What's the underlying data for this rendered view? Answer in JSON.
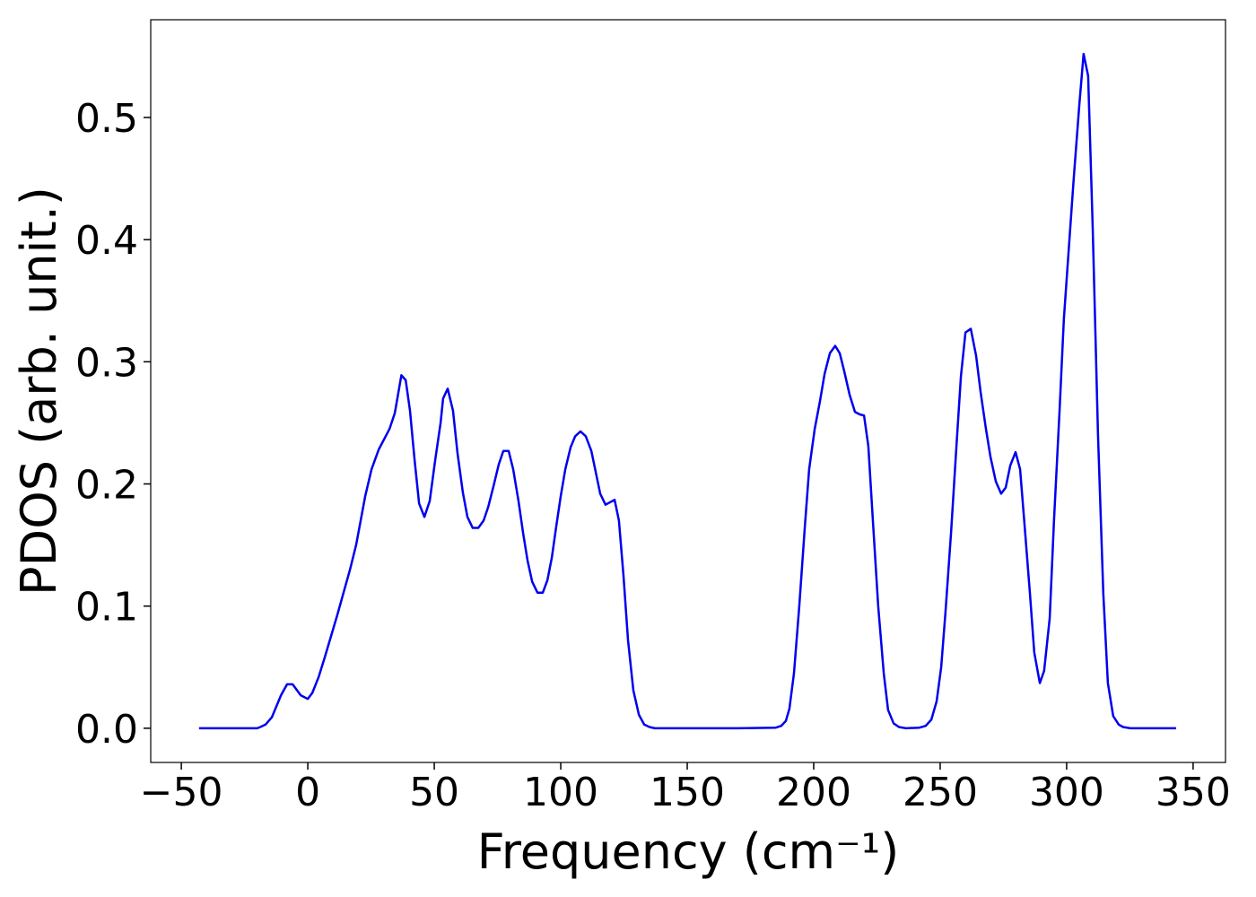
{
  "chart_data": {
    "type": "line",
    "xlabel": "Frequency (cm⁻¹)",
    "ylabel": "PDOS (arb. unit.)",
    "color": "#0000ee",
    "grid": false,
    "x": [
      -43,
      -35,
      -25,
      -20,
      -18.8,
      -16.7,
      -14.2,
      -10.6,
      -8.2,
      -6,
      -2.8,
      0,
      1.8,
      4.3,
      6.7,
      11.7,
      16.7,
      19.1,
      22.7,
      25.2,
      28,
      32.3,
      34.4,
      37,
      38.7,
      40.4,
      42.2,
      44,
      46.1,
      48.2,
      50.4,
      52.5,
      53.5,
      55.3,
      57.4,
      59.2,
      61.3,
      63.1,
      65.2,
      67.4,
      69.5,
      71.3,
      73.4,
      75.5,
      77.3,
      79.4,
      81.2,
      83.3,
      85.1,
      86.9,
      88.7,
      90.8,
      92.9,
      94.7,
      96.5,
      98.2,
      100,
      101.8,
      103.9,
      105.7,
      107.8,
      109.9,
      112.1,
      113.8,
      115.6,
      117.7,
      119.5,
      121.3,
      123,
      124.8,
      126.6,
      128.7,
      130.9,
      133,
      135.1,
      137.2,
      150,
      170,
      185,
      187.2,
      189,
      190.4,
      192.2,
      194.3,
      196.5,
      198.2,
      200.4,
      202.5,
      204.3,
      206.4,
      208.5,
      210.3,
      212.1,
      214.2,
      216.3,
      218.1,
      219.9,
      221.6,
      223.4,
      225.5,
      227.7,
      229.4,
      231.6,
      233.7,
      236.5,
      241.8,
      244.3,
      246.5,
      248.6,
      250.4,
      252.1,
      254.3,
      256.4,
      258.2,
      260,
      262.1,
      264.2,
      266,
      268.1,
      269.9,
      272,
      274.1,
      275.9,
      277.7,
      279.8,
      281.6,
      283.3,
      285.5,
      287.2,
      289.4,
      291.1,
      293.3,
      295,
      297.2,
      298.9,
      301.1,
      302.8,
      305,
      306.7,
      308.5,
      310.3,
      312.4,
      314.5,
      316.3,
      318.4,
      320.6,
      322.3,
      325.2,
      330,
      343.3
    ],
    "values": [
      0,
      0,
      0,
      0,
      0.001,
      0.003,
      0.009,
      0.027,
      0.036,
      0.036,
      0.027,
      0.024,
      0.029,
      0.042,
      0.058,
      0.093,
      0.13,
      0.15,
      0.19,
      0.212,
      0.228,
      0.245,
      0.258,
      0.289,
      0.285,
      0.26,
      0.22,
      0.184,
      0.173,
      0.186,
      0.22,
      0.25,
      0.27,
      0.278,
      0.26,
      0.225,
      0.193,
      0.173,
      0.164,
      0.164,
      0.17,
      0.181,
      0.198,
      0.216,
      0.227,
      0.227,
      0.212,
      0.186,
      0.16,
      0.137,
      0.12,
      0.111,
      0.111,
      0.121,
      0.14,
      0.165,
      0.19,
      0.212,
      0.23,
      0.239,
      0.243,
      0.239,
      0.227,
      0.21,
      0.192,
      0.183,
      0.185,
      0.187,
      0.17,
      0.125,
      0.072,
      0.031,
      0.011,
      0.003,
      0.001,
      0,
      0,
      0,
      0.0005,
      0.002,
      0.006,
      0.016,
      0.045,
      0.1,
      0.165,
      0.212,
      0.245,
      0.268,
      0.29,
      0.307,
      0.313,
      0.307,
      0.292,
      0.273,
      0.259,
      0.257,
      0.256,
      0.231,
      0.17,
      0.1,
      0.045,
      0.015,
      0.004,
      0.001,
      0,
      0.0005,
      0.002,
      0.007,
      0.022,
      0.05,
      0.095,
      0.16,
      0.23,
      0.288,
      0.324,
      0.327,
      0.305,
      0.275,
      0.245,
      0.222,
      0.202,
      0.192,
      0.197,
      0.215,
      0.226,
      0.212,
      0.168,
      0.11,
      0.062,
      0.037,
      0.047,
      0.09,
      0.17,
      0.26,
      0.335,
      0.4,
      0.45,
      0.51,
      0.552,
      0.534,
      0.41,
      0.24,
      0.11,
      0.037,
      0.01,
      0.003,
      0.001,
      0,
      0,
      0
    ],
    "xlim": [
      -62.1,
      362.8
    ],
    "xticks": [
      {
        "value": -50,
        "label": "−50"
      },
      0,
      50,
      100,
      150,
      200,
      250,
      300,
      350
    ],
    "ylim": [
      -0.028,
      0.58
    ],
    "yticks": [
      {
        "value": 0,
        "label": "0.0"
      },
      0.1,
      0.2,
      0.3,
      0.4,
      0.5
    ]
  }
}
